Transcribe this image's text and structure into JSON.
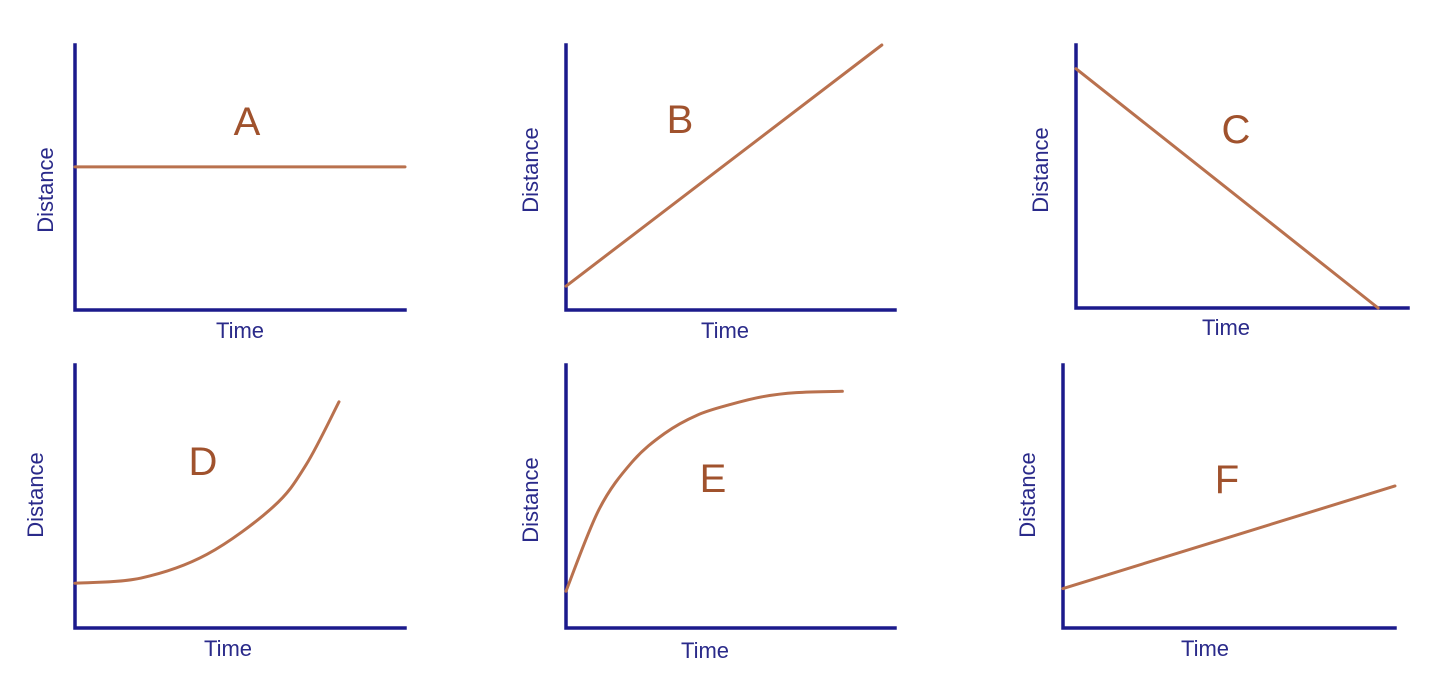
{
  "colors": {
    "axis": "#1c1a8c",
    "line": "#b9714e",
    "panel_label": "#a0522d",
    "axis_label": "#2a2a8a"
  },
  "chart_data": [
    {
      "type": "line",
      "panel_label": "A",
      "xlabel": "Time",
      "ylabel": "Distance",
      "xlim": [
        0,
        10
      ],
      "ylim": [
        0,
        10
      ],
      "grid": false,
      "points": [
        [
          0,
          5.4
        ],
        [
          10,
          5.4
        ]
      ]
    },
    {
      "type": "line",
      "panel_label": "B",
      "xlabel": "Time",
      "ylabel": "Distance",
      "xlim": [
        0,
        10
      ],
      "ylim": [
        0,
        10
      ],
      "grid": false,
      "points": [
        [
          0,
          0.9
        ],
        [
          9.6,
          10
        ]
      ]
    },
    {
      "type": "line",
      "panel_label": "C",
      "xlabel": "Time",
      "ylabel": "Distance",
      "xlim": [
        0,
        10
      ],
      "ylim": [
        0,
        10
      ],
      "grid": false,
      "points": [
        [
          0,
          9.1
        ],
        [
          9.1,
          0
        ]
      ]
    },
    {
      "type": "line",
      "panel_label": "D",
      "xlabel": "Time",
      "ylabel": "Distance",
      "xlim": [
        0,
        10
      ],
      "ylim": [
        0,
        10
      ],
      "grid": false,
      "points": [
        [
          0,
          1.7
        ],
        [
          2,
          1.9
        ],
        [
          4,
          2.8
        ],
        [
          6,
          4.6
        ],
        [
          7,
          6.2
        ],
        [
          8,
          8.6
        ]
      ]
    },
    {
      "type": "line",
      "panel_label": "E",
      "xlabel": "Time",
      "ylabel": "Distance",
      "xlim": [
        0,
        10
      ],
      "ylim": [
        0,
        10
      ],
      "grid": false,
      "points": [
        [
          0,
          1.4
        ],
        [
          1,
          4.5
        ],
        [
          2,
          6.3
        ],
        [
          3,
          7.4
        ],
        [
          4,
          8.1
        ],
        [
          5,
          8.5
        ],
        [
          6,
          8.8
        ],
        [
          7,
          8.95
        ],
        [
          8.4,
          9.0
        ]
      ]
    },
    {
      "type": "line",
      "panel_label": "F",
      "xlabel": "Time",
      "ylabel": "Distance",
      "xlim": [
        0,
        10
      ],
      "ylim": [
        0,
        10
      ],
      "grid": false,
      "points": [
        [
          0,
          1.5
        ],
        [
          10,
          5.4
        ]
      ]
    }
  ]
}
